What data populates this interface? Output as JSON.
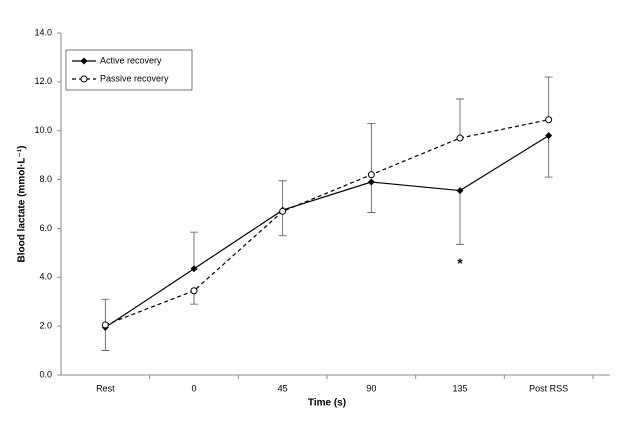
{
  "chart_data": {
    "type": "line",
    "xlabel": "Time (s)",
    "ylabel": "Blood lactate (mmol·L⁻¹)",
    "categories": [
      "Rest",
      "0",
      "45",
      "90",
      "135",
      "Post RSS"
    ],
    "series": [
      {
        "name": "Active recovery",
        "color": "#000000",
        "dash": false,
        "marker": "diamond",
        "values": [
          1.95,
          4.35,
          6.75,
          7.9,
          7.55,
          9.8
        ],
        "errors": [
          0.95,
          1.5,
          1.2,
          1.25,
          2.2,
          1.7
        ],
        "error_sides": [
          "down",
          "up",
          "up",
          "down",
          "down",
          "down"
        ]
      },
      {
        "name": "Passive recovery",
        "color": "#000000",
        "dash": true,
        "marker": "circle",
        "values": [
          2.05,
          3.45,
          6.7,
          8.2,
          9.7,
          10.45
        ],
        "errors": [
          1.05,
          0.55,
          1.0,
          2.1,
          1.6,
          1.75
        ],
        "error_sides": [
          "up",
          "down",
          "down",
          "up",
          "up",
          "up"
        ]
      }
    ],
    "annotations": [
      {
        "text": "*"
      }
    ],
    "ylim": [
      0,
      14
    ],
    "yticks": [
      {
        "value": 0,
        "label": "0.0"
      },
      {
        "value": 2,
        "label": "2.0"
      },
      {
        "value": 4,
        "label": "4.0"
      },
      {
        "value": 6,
        "label": "6.0"
      },
      {
        "value": 8,
        "label": "8.0"
      },
      {
        "value": 10,
        "label": "10.0"
      },
      {
        "value": 12,
        "label": "12.0"
      },
      {
        "value": 14,
        "label": "14.0"
      }
    ],
    "grid": false,
    "legend": "upper left"
  }
}
